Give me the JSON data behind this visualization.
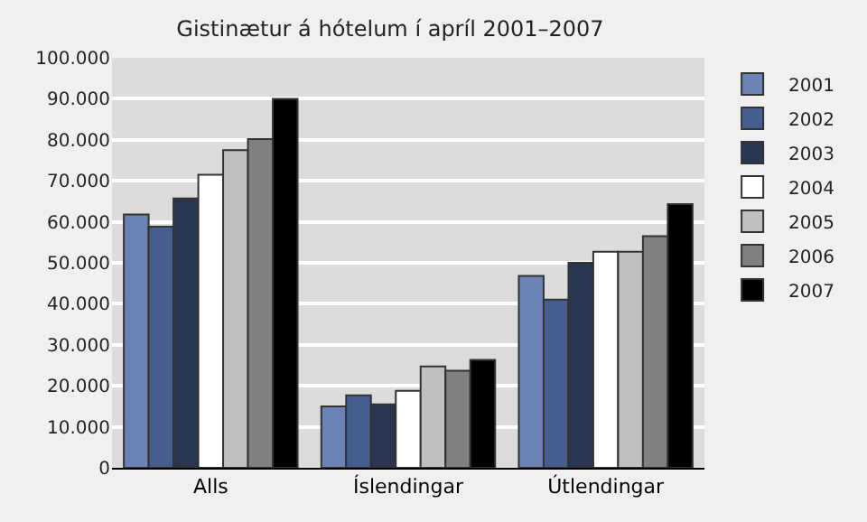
{
  "chart_data": {
    "type": "bar",
    "title": "Gistinætur á hótelum í apríl 2001–2007",
    "categories": [
      "Alls",
      "Íslendingar",
      "Útlendingar"
    ],
    "series": [
      {
        "name": "2001",
        "color": "#6b83b5",
        "values": [
          61800,
          15000,
          46800
        ]
      },
      {
        "name": "2002",
        "color": "#455d8f",
        "values": [
          58800,
          17700,
          41000
        ]
      },
      {
        "name": "2003",
        "color": "#2a3550",
        "values": [
          65700,
          15500,
          50000
        ]
      },
      {
        "name": "2004",
        "color": "#ffffff",
        "values": [
          71500,
          18800,
          52700
        ]
      },
      {
        "name": "2005",
        "color": "#c0c0c0",
        "values": [
          77500,
          24700,
          52700
        ]
      },
      {
        "name": "2006",
        "color": "#808080",
        "values": [
          80200,
          23700,
          56500
        ]
      },
      {
        "name": "2007",
        "color": "#000000",
        "values": [
          90000,
          26300,
          64300
        ]
      }
    ],
    "ylim": [
      0,
      100000
    ],
    "yticks": [
      0,
      {
        "value": 10000,
        "label": "10.000"
      },
      {
        "value": 20000,
        "label": "20.000"
      },
      {
        "value": 30000,
        "label": "30.000"
      },
      {
        "value": 40000,
        "label": "40.000"
      },
      {
        "value": 50000,
        "label": "50.000"
      },
      {
        "value": 60000,
        "label": "60.000"
      },
      {
        "value": 70000,
        "label": "70.000"
      },
      {
        "value": 80000,
        "label": "80.000"
      },
      {
        "value": 90000,
        "label": "90.000"
      },
      {
        "value": 100000,
        "label": "100.000"
      }
    ],
    "grid": "y",
    "legend": "right"
  }
}
